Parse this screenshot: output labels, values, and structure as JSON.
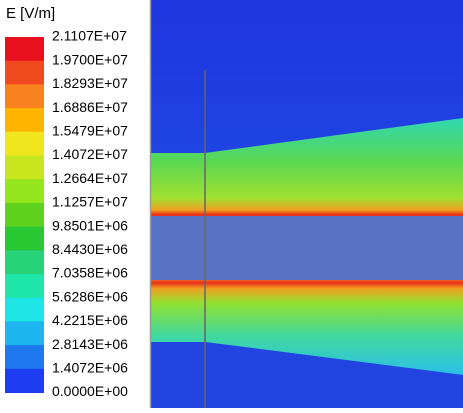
{
  "legend": {
    "title": "E [V/m]",
    "labels": [
      "2.1107E+07",
      "1.9700E+07",
      "1.8293E+07",
      "1.6886E+07",
      "1.5479E+07",
      "1.4072E+07",
      "1.2664E+07",
      "1.1257E+07",
      "9.8501E+06",
      "8.4430E+06",
      "7.0358E+06",
      "5.6286E+06",
      "4.2215E+06",
      "2.8143E+06",
      "1.4072E+06",
      "0.0000E+00"
    ],
    "colors": [
      "#e8101c",
      "#f04a1e",
      "#f7821e",
      "#ffb400",
      "#f0e61e",
      "#c8e61e",
      "#96e61e",
      "#5fd21e",
      "#28c832",
      "#28d278",
      "#1ee6a8",
      "#1ee6e6",
      "#1eb4f0",
      "#1e78f0",
      "#1e3cf0"
    ]
  }
}
